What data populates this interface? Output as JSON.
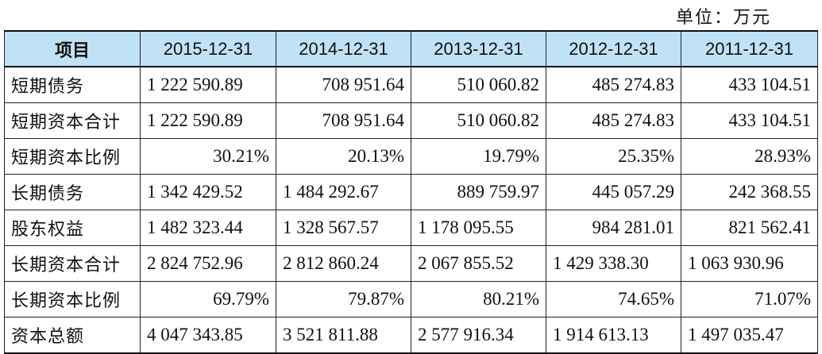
{
  "unit_label": "单位：万元",
  "table": {
    "headers": [
      "项目",
      "2015-12-31",
      "2014-12-31",
      "2013-12-31",
      "2012-12-31",
      "2011-12-31"
    ],
    "rows": [
      {
        "label": "短期债务",
        "values": [
          "1 222 590.89",
          "708 951.64",
          "510 060.82",
          "485 274.83",
          "433 104.51"
        ]
      },
      {
        "label": "短期资本合计",
        "values": [
          "1 222 590.89",
          "708 951.64",
          "510 060.82",
          "485 274.83",
          "433 104.51"
        ]
      },
      {
        "label": "短期资本比例",
        "values": [
          "30.21%",
          "20.13%",
          "19.79%",
          "25.35%",
          "28.93%"
        ]
      },
      {
        "label": "长期债务",
        "values": [
          "1 342 429.52",
          "1 484 292.67",
          "889 759.97",
          "445 057.29",
          "242 368.55"
        ]
      },
      {
        "label": "股东权益",
        "values": [
          "1 482 323.44",
          "1 328 567.57",
          "1 178 095.55",
          "984 281.01",
          "821 562.41"
        ]
      },
      {
        "label": "长期资本合计",
        "values": [
          "2 824 752.96",
          "2 812 860.24",
          "2 067 855.52",
          "1 429 338.30",
          "1 063 930.96"
        ]
      },
      {
        "label": "长期资本比例",
        "values": [
          "69.79%",
          "79.87%",
          "80.21%",
          "74.65%",
          "71.07%"
        ]
      },
      {
        "label": "资本总额",
        "values": [
          "4 047 343.85",
          "3 521 811.88",
          "2 577 916.34",
          "1 914 613.13",
          "1 497 035.47"
        ]
      }
    ]
  },
  "colors": {
    "header_background": "#bfe2f7",
    "border": "#222222"
  }
}
